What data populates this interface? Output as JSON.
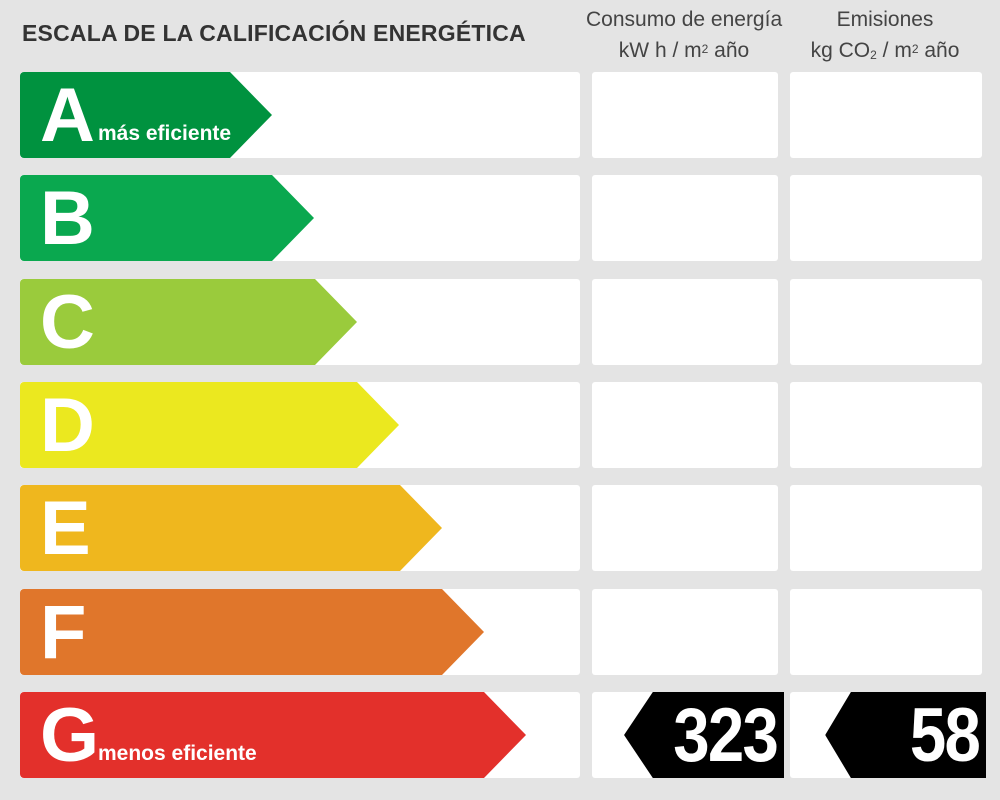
{
  "title": "ESCALA DE LA CALIFICACIÓN ENERGÉTICA",
  "headers": {
    "energy_line1": "Consumo de energía",
    "energy_line2_a": "kW h  / m",
    "energy_line2_sup": "2",
    "energy_line2_b": " año",
    "emissions_line1": "Emisiones",
    "emissions_line2_a": "kg CO",
    "emissions_line2_sub": "2",
    "emissions_line2_b": "  / m",
    "emissions_line2_sup": "2",
    "emissions_line2_c": " año"
  },
  "chart_data": {
    "type": "table",
    "title": "ESCALA DE LA CALIFICACIÓN ENERGÉTICA",
    "classes": [
      {
        "letter": "A",
        "caption": "más eficiente",
        "color": "#00923f"
      },
      {
        "letter": "B",
        "caption": "",
        "color": "#0aa84f"
      },
      {
        "letter": "C",
        "caption": "",
        "color": "#9acb3c"
      },
      {
        "letter": "D",
        "caption": "",
        "color": "#ebe81f"
      },
      {
        "letter": "E",
        "caption": "",
        "color": "#efb71e"
      },
      {
        "letter": "F",
        "caption": "",
        "color": "#e0762b"
      },
      {
        "letter": "G",
        "caption": "menos eficiente",
        "color": "#e3302b"
      }
    ],
    "energy_consumption": {
      "class": "G",
      "value": "323",
      "unit": "kW h / m2 año"
    },
    "emissions": {
      "class": "G",
      "value": "58",
      "unit": "kg CO2 / m2 año"
    }
  }
}
